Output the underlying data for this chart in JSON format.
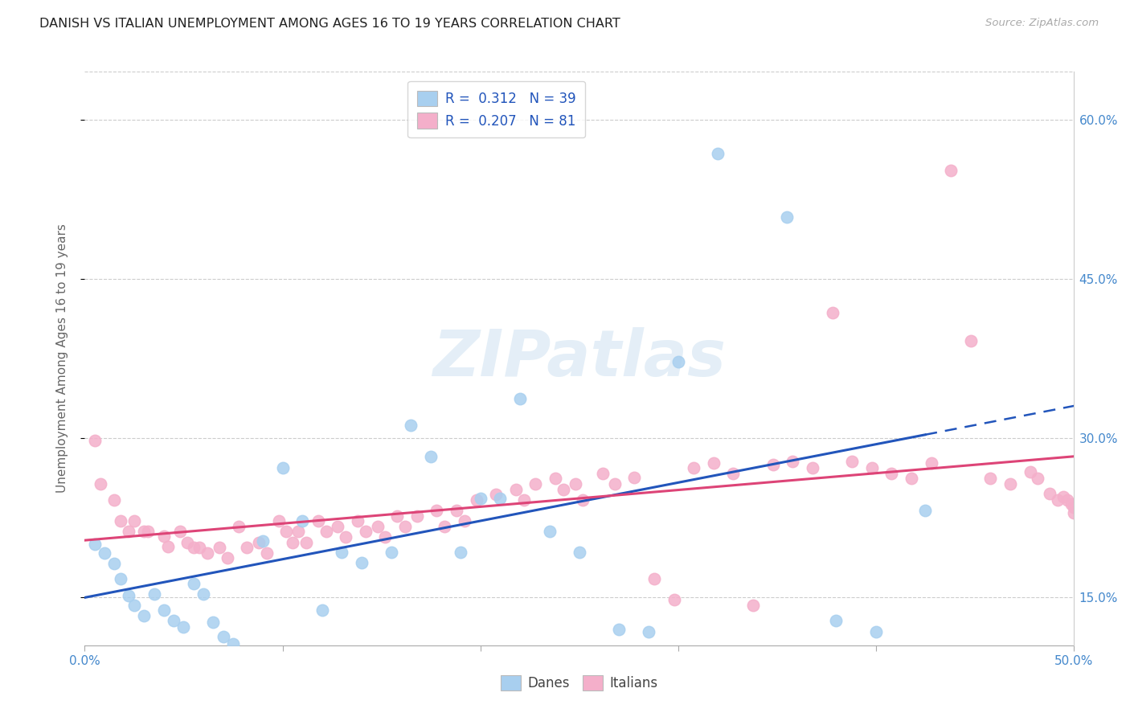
{
  "title": "DANISH VS ITALIAN UNEMPLOYMENT AMONG AGES 16 TO 19 YEARS CORRELATION CHART",
  "source": "Source: ZipAtlas.com",
  "ylabel": "Unemployment Among Ages 16 to 19 years",
  "danes_R": "0.312",
  "danes_N": "39",
  "italians_R": "0.207",
  "italians_N": "81",
  "danes_color": "#A8CFEF",
  "italians_color": "#F4AFCA",
  "danes_line_color": "#2255BB",
  "italians_line_color": "#DD4477",
  "watermark": "ZIPatlas",
  "xlim": [
    0.0,
    0.5
  ],
  "ylim": [
    0.105,
    0.645
  ],
  "ytick_positions": [
    0.15,
    0.3,
    0.45,
    0.6
  ],
  "ytick_labels": [
    "15.0%",
    "30.0%",
    "45.0%",
    "60.0%"
  ],
  "danes_x": [
    0.005,
    0.01,
    0.015,
    0.018,
    0.022,
    0.025,
    0.03,
    0.035,
    0.04,
    0.045,
    0.05,
    0.055,
    0.06,
    0.065,
    0.07,
    0.075,
    0.09,
    0.1,
    0.11,
    0.12,
    0.13,
    0.14,
    0.155,
    0.165,
    0.175,
    0.19,
    0.2,
    0.21,
    0.22,
    0.235,
    0.25,
    0.27,
    0.285,
    0.3,
    0.32,
    0.355,
    0.38,
    0.4,
    0.425
  ],
  "danes_y": [
    0.2,
    0.192,
    0.182,
    0.168,
    0.152,
    0.143,
    0.133,
    0.153,
    0.138,
    0.128,
    0.122,
    0.163,
    0.153,
    0.127,
    0.113,
    0.106,
    0.203,
    0.272,
    0.222,
    0.138,
    0.193,
    0.183,
    0.193,
    0.312,
    0.283,
    0.193,
    0.243,
    0.243,
    0.337,
    0.212,
    0.193,
    0.12,
    0.118,
    0.372,
    0.568,
    0.508,
    0.128,
    0.118,
    0.232
  ],
  "italians_x": [
    0.005,
    0.008,
    0.015,
    0.018,
    0.022,
    0.025,
    0.03,
    0.032,
    0.04,
    0.042,
    0.048,
    0.052,
    0.055,
    0.058,
    0.062,
    0.068,
    0.072,
    0.078,
    0.082,
    0.088,
    0.092,
    0.098,
    0.102,
    0.105,
    0.108,
    0.112,
    0.118,
    0.122,
    0.128,
    0.132,
    0.138,
    0.142,
    0.148,
    0.152,
    0.158,
    0.162,
    0.168,
    0.178,
    0.182,
    0.188,
    0.192,
    0.198,
    0.208,
    0.218,
    0.222,
    0.228,
    0.238,
    0.242,
    0.248,
    0.252,
    0.262,
    0.268,
    0.278,
    0.288,
    0.298,
    0.308,
    0.318,
    0.328,
    0.338,
    0.348,
    0.358,
    0.368,
    0.378,
    0.388,
    0.398,
    0.408,
    0.418,
    0.428,
    0.438,
    0.448,
    0.458,
    0.468,
    0.478,
    0.482,
    0.488,
    0.492,
    0.495,
    0.497,
    0.499,
    0.5,
    0.5
  ],
  "italians_y": [
    0.298,
    0.257,
    0.242,
    0.222,
    0.212,
    0.222,
    0.212,
    0.212,
    0.208,
    0.198,
    0.212,
    0.202,
    0.197,
    0.197,
    0.192,
    0.197,
    0.187,
    0.217,
    0.197,
    0.202,
    0.192,
    0.222,
    0.212,
    0.202,
    0.212,
    0.202,
    0.222,
    0.212,
    0.217,
    0.207,
    0.222,
    0.212,
    0.217,
    0.207,
    0.227,
    0.217,
    0.227,
    0.232,
    0.217,
    0.232,
    0.222,
    0.242,
    0.247,
    0.252,
    0.242,
    0.257,
    0.262,
    0.252,
    0.257,
    0.242,
    0.267,
    0.257,
    0.263,
    0.168,
    0.148,
    0.272,
    0.277,
    0.267,
    0.143,
    0.275,
    0.278,
    0.272,
    0.418,
    0.278,
    0.272,
    0.267,
    0.262,
    0.277,
    0.552,
    0.392,
    0.262,
    0.257,
    0.268,
    0.262,
    0.248,
    0.242,
    0.245,
    0.242,
    0.238,
    0.235,
    0.23
  ]
}
